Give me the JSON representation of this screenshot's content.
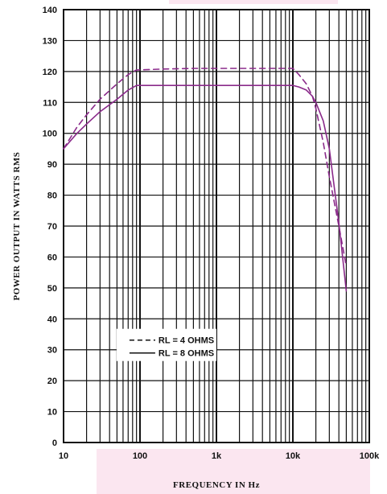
{
  "chart_data": {
    "type": "line",
    "title": "",
    "xlabel": "FREQUENCY IN Hz",
    "ylabel": "POWER OUTPUT IN WATTS RMS",
    "x_scale": "log",
    "xlim": [
      10,
      100000
    ],
    "ylim": [
      0,
      140
    ],
    "x_ticks": [
      10,
      100,
      1000,
      10000,
      100000
    ],
    "x_tick_labels": [
      "10",
      "100",
      "1k",
      "10k",
      "100k"
    ],
    "y_ticks": [
      0,
      10,
      20,
      30,
      40,
      50,
      60,
      70,
      80,
      90,
      100,
      110,
      120,
      130,
      140
    ],
    "y_tick_labels": [
      "0",
      "10",
      "20",
      "30",
      "40",
      "50",
      "60",
      "70",
      "80",
      "90",
      "100",
      "110",
      "120",
      "130",
      "140"
    ],
    "grid": true,
    "legend_position": "lower-left",
    "colors": {
      "series_4ohm": "#8a2a8a",
      "series_8ohm": "#8a2a8a",
      "band_tint": "#fbe6f0"
    },
    "series": [
      {
        "name": "RL = 4 OHMS",
        "style": "dashed",
        "x": [
          10,
          15,
          20,
          30,
          50,
          70,
          90,
          100,
          200,
          500,
          1000,
          2000,
          5000,
          10000,
          12000,
          15000,
          18000,
          20000,
          25000,
          30000,
          40000,
          50000
        ],
        "y": [
          95,
          102,
          106,
          111,
          116,
          119,
          120.5,
          120.5,
          120.8,
          121,
          121,
          121,
          121,
          121,
          119,
          116,
          112,
          108,
          97,
          86,
          70,
          57
        ]
      },
      {
        "name": "RL = 8 OHMS",
        "style": "solid",
        "x": [
          10,
          15,
          20,
          30,
          50,
          70,
          90,
          100,
          200,
          500,
          1000,
          2000,
          5000,
          10000,
          12000,
          15000,
          18000,
          20000,
          25000,
          30000,
          40000,
          50000
        ],
        "y": [
          95,
          100,
          103,
          107,
          111,
          114,
          115.5,
          115.5,
          115.5,
          115.5,
          115.5,
          115.5,
          115.5,
          115.5,
          115,
          114,
          112,
          110,
          104,
          95,
          71,
          49
        ]
      }
    ]
  }
}
